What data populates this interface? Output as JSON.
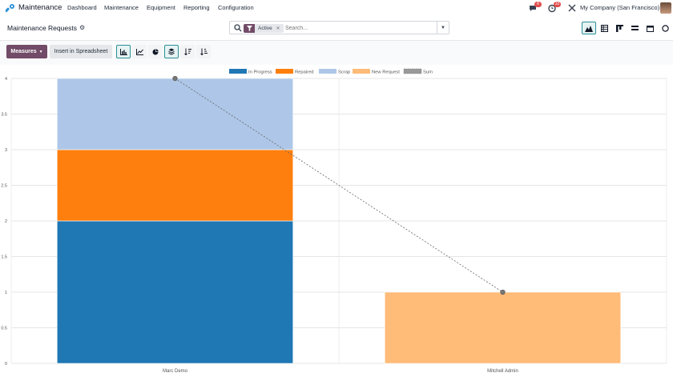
{
  "navbar": {
    "app_name": "Maintenance",
    "menu": [
      "Dashboard",
      "Maintenance",
      "Equipment",
      "Reporting",
      "Configuration"
    ],
    "messages_count": "8",
    "activities_count": "33",
    "company": "My Company (San Francisco)"
  },
  "control_panel": {
    "title": "Maintenance Requests",
    "facet_value": "Active",
    "search_placeholder": "Search..."
  },
  "toolbar": {
    "measures_label": "Measures",
    "spreadsheet_label": "Insert in Spreadsheet"
  },
  "chart_data": {
    "type": "bar",
    "stacked": true,
    "categories": [
      "Marc Demo",
      "Mitchell Admin"
    ],
    "series": [
      {
        "name": "In Progress",
        "color": "#1f77b4",
        "values": [
          2,
          0
        ]
      },
      {
        "name": "Repaired",
        "color": "#ff7f0e",
        "values": [
          1,
          0
        ]
      },
      {
        "name": "Scrap",
        "color": "#aec7e8",
        "values": [
          1,
          0
        ]
      },
      {
        "name": "New Request",
        "color": "#ffbb78",
        "values": [
          0,
          1
        ]
      }
    ],
    "sum_series": {
      "name": "Sum",
      "color": "#666666",
      "values": [
        4,
        1
      ]
    },
    "ylim": [
      0,
      4
    ],
    "yticks": [
      "0",
      "0.5",
      "1",
      "1.5",
      "2",
      "2.5",
      "3",
      "3.5",
      "4"
    ],
    "legend_position": "top-center",
    "grid": true
  }
}
